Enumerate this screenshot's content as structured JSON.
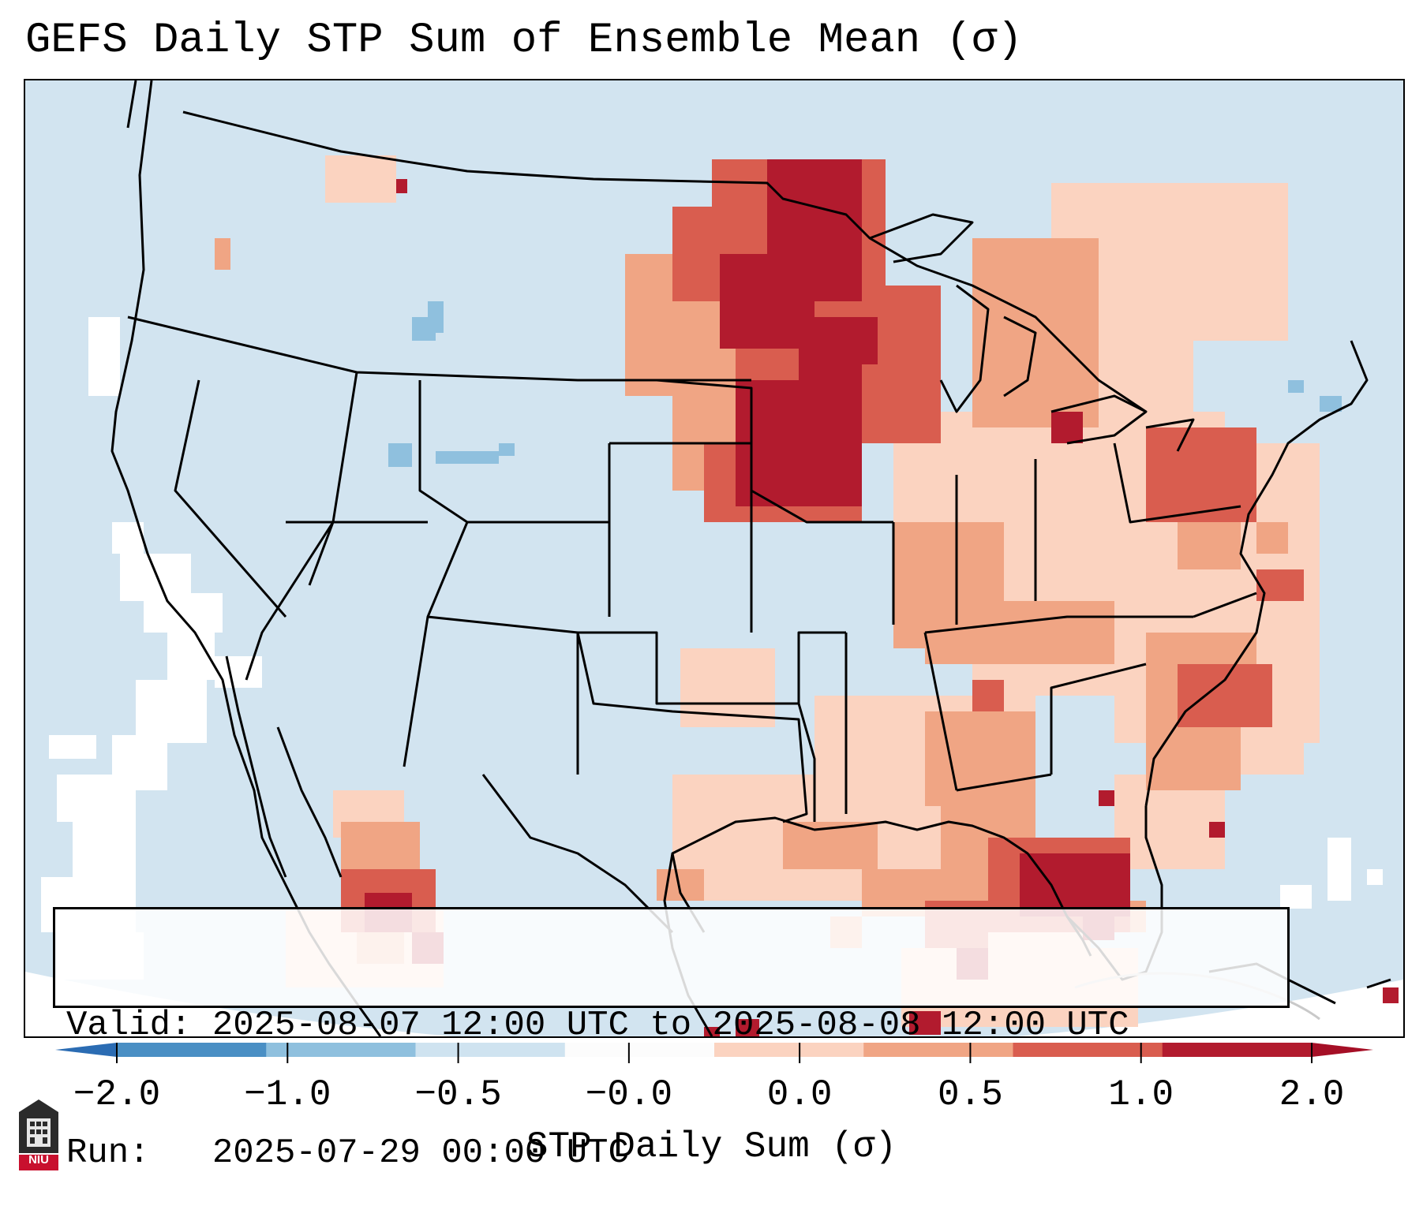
{
  "title": "GEFS Daily STP Sum of Ensemble Mean (σ)",
  "info": {
    "valid": "Valid: 2025-08-07 12:00 UTC to 2025-08-08 12:00 UTC",
    "run": "Run:   2025-07-29 00:00 UTC"
  },
  "colorbar": {
    "label": "STP Daily Sum (σ)",
    "ticks": [
      "−2.0",
      "−1.0",
      "−0.5",
      "−0.0",
      "0.0",
      "0.5",
      "1.0",
      "2.0"
    ],
    "colors": [
      "#4a8fc4",
      "#8fc0de",
      "#cfe3f0",
      "#fcfcfc",
      "#fbd3c0",
      "#f0a584",
      "#d95d4f",
      "#b21b2e"
    ],
    "extend_low_color": "#2b6cb3",
    "extend_high_color": "#a50f26"
  },
  "map": {
    "ocean_color": "#d2e4f0",
    "region_labels": []
  },
  "logo": {
    "text": "NIU",
    "icon": "niu-university-logo-icon"
  }
}
